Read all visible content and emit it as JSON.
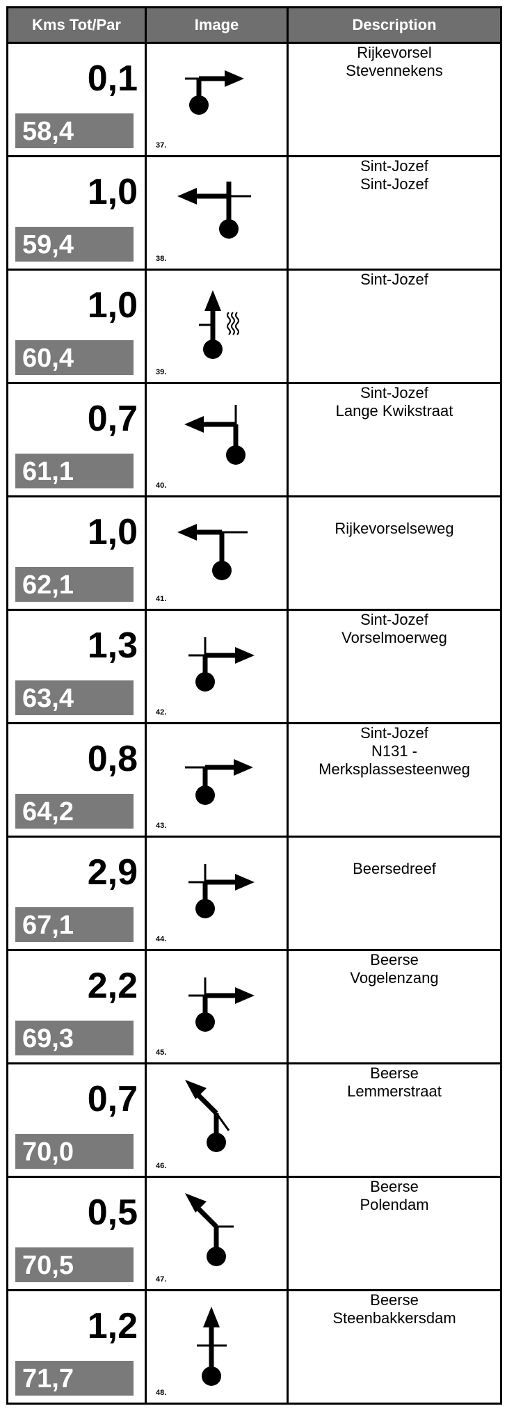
{
  "header": {
    "col_km": "Kms Tot/Par",
    "col_image": "Image",
    "col_description": "Description"
  },
  "rows": [
    {
      "partial": "0,1",
      "total": "58,4",
      "number": "37.",
      "desc": [
        "Rijkevorsel",
        "Stevennekens"
      ],
      "icon": "turn-right-icon"
    },
    {
      "partial": "1,0",
      "total": "59,4",
      "number": "38.",
      "desc": [
        "Sint-Jozef",
        "Sint-Jozef"
      ],
      "icon": "turn-left-crossroad-icon"
    },
    {
      "partial": "1,0",
      "total": "60,4",
      "number": "39.",
      "desc": [
        "Sint-Jozef"
      ],
      "icon": "straight-road-wavy-icon"
    },
    {
      "partial": "0,7",
      "total": "61,1",
      "number": "40.",
      "desc": [
        "Sint-Jozef",
        "Lange Kwikstraat"
      ],
      "icon": "turn-left-icon"
    },
    {
      "partial": "1,0",
      "total": "62,1",
      "number": "41.",
      "desc": [
        "Rijkevorselseweg"
      ],
      "icon": "t-junction-left-icon"
    },
    {
      "partial": "1,3",
      "total": "63,4",
      "number": "42.",
      "desc": [
        "Sint-Jozef",
        "Vorselmoerweg"
      ],
      "icon": "turn-right-crossroad-icon"
    },
    {
      "partial": "0,8",
      "total": "64,2",
      "number": "43.",
      "desc": [
        "Sint-Jozef",
        "N131 -",
        "Merksplassesteenweg"
      ],
      "icon": "t-junction-right-icon"
    },
    {
      "partial": "2,9",
      "total": "67,1",
      "number": "44.",
      "desc": [
        "Beersedreef"
      ],
      "icon": "turn-right-crossroad-icon"
    },
    {
      "partial": "2,2",
      "total": "69,3",
      "number": "45.",
      "desc": [
        "Beerse",
        "Vogelenzang"
      ],
      "icon": "turn-right-crossroad-icon"
    },
    {
      "partial": "0,7",
      "total": "70,0",
      "number": "46.",
      "desc": [
        "Beerse",
        "Lemmerstraat"
      ],
      "icon": "bear-left-icon"
    },
    {
      "partial": "0,5",
      "total": "70,5",
      "number": "47.",
      "desc": [
        "Beerse",
        "Polendam"
      ],
      "icon": "bear-left-junction-icon"
    },
    {
      "partial": "1,2",
      "total": "71,7",
      "number": "48.",
      "desc": [
        "Beerse",
        "Steenbakkersdam"
      ],
      "icon": "straight-crossroad-icon"
    }
  ]
}
